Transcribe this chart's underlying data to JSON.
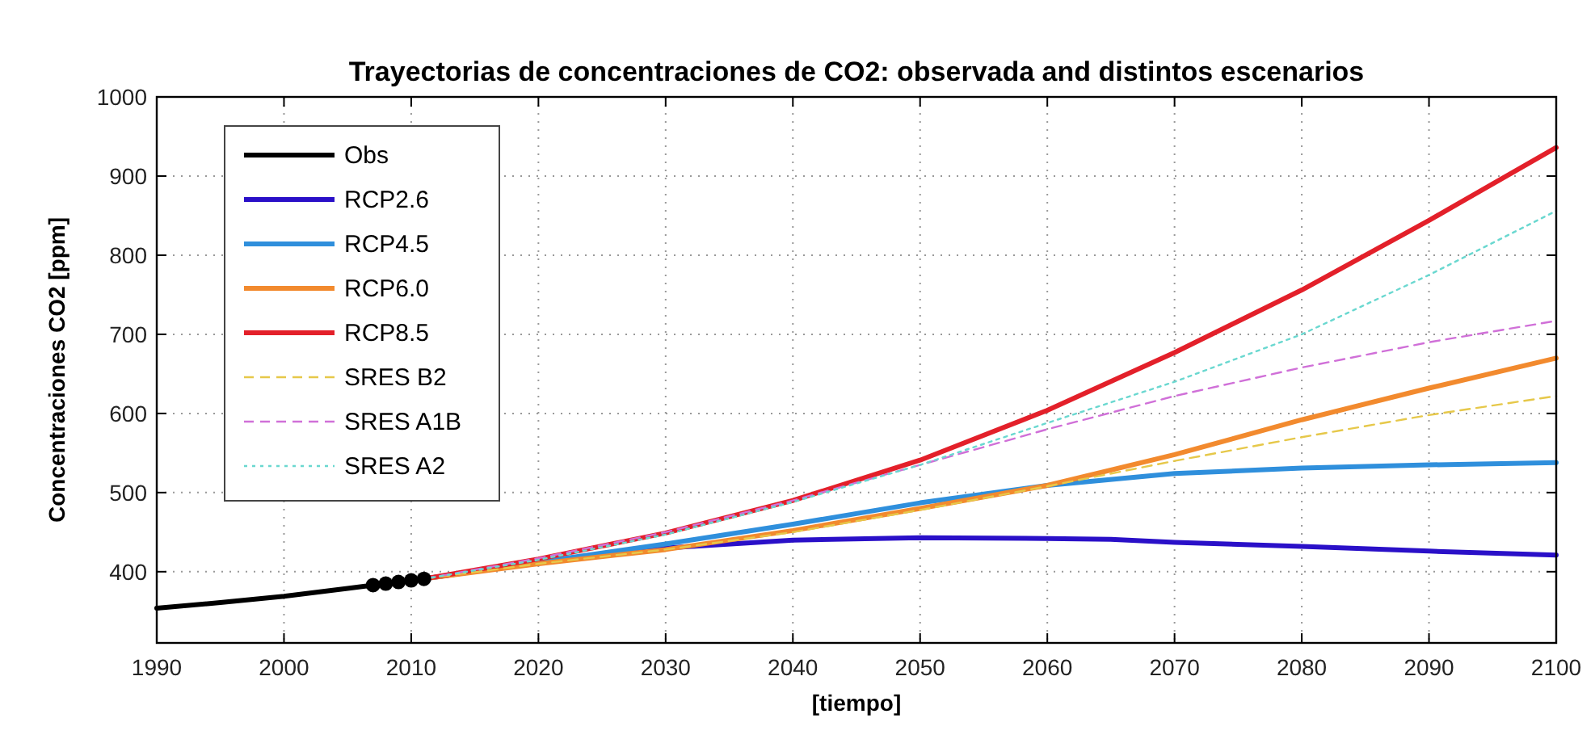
{
  "chart_data": {
    "type": "line",
    "title": "Trayectorias de concentraciones de CO2: observada and distintos escenarios",
    "xlabel": "[tiempo]",
    "ylabel": "Concentraciones CO2 [ppm]",
    "xlim": [
      1990,
      2100
    ],
    "xticks": [
      1990,
      2000,
      2010,
      2020,
      2030,
      2040,
      2050,
      2060,
      2070,
      2080,
      2090,
      2100
    ],
    "ylim": [
      310,
      1000
    ],
    "yticks": [
      400,
      500,
      600,
      700,
      800,
      900,
      1000
    ],
    "grid": true,
    "legend": "top left",
    "series": [
      {
        "name": "Obs",
        "color": "#000000",
        "line_style": "solid",
        "x": [
          1990,
          1995,
          2000,
          2005,
          2010,
          2011
        ],
        "values": [
          354,
          361,
          369,
          379,
          389,
          391
        ]
      },
      {
        "name": "RCP2.6",
        "color": "#2a10c8",
        "line_style": "solid",
        "x": [
          2011,
          2020,
          2030,
          2040,
          2050,
          2060,
          2065,
          2070,
          2080,
          2090,
          2100
        ],
        "values": [
          391,
          412,
          430,
          440,
          443,
          442,
          441,
          437,
          432,
          426,
          421
        ]
      },
      {
        "name": "RCP4.5",
        "color": "#2f8fdc",
        "line_style": "solid",
        "x": [
          2011,
          2020,
          2030,
          2040,
          2050,
          2060,
          2070,
          2080,
          2090,
          2100
        ],
        "values": [
          391,
          412,
          435,
          460,
          487,
          509,
          524,
          531,
          535,
          538
        ]
      },
      {
        "name": "RCP6.0",
        "color": "#f28a2e",
        "line_style": "solid",
        "x": [
          2011,
          2020,
          2030,
          2040,
          2050,
          2060,
          2070,
          2080,
          2090,
          2100
        ],
        "values": [
          391,
          410,
          428,
          452,
          480,
          509,
          548,
          592,
          632,
          670
        ]
      },
      {
        "name": "RCP8.5",
        "color": "#e3202a",
        "line_style": "solid",
        "x": [
          2011,
          2020,
          2030,
          2040,
          2050,
          2060,
          2070,
          2080,
          2090,
          2100
        ],
        "values": [
          391,
          416,
          449,
          490,
          541,
          604,
          677,
          756,
          844,
          936
        ]
      },
      {
        "name": "SRES B2",
        "color": "#e6c84a",
        "line_style": "dashed",
        "x": [
          2011,
          2020,
          2030,
          2040,
          2050,
          2060,
          2070,
          2080,
          2090,
          2100
        ],
        "values": [
          391,
          410,
          428,
          450,
          478,
          508,
          540,
          570,
          598,
          622
        ]
      },
      {
        "name": "SRES A1B",
        "color": "#d070d8",
        "line_style": "dashed",
        "x": [
          2011,
          2020,
          2030,
          2040,
          2050,
          2060,
          2070,
          2080,
          2090,
          2100
        ],
        "values": [
          391,
          417,
          450,
          490,
          535,
          580,
          622,
          658,
          690,
          717
        ]
      },
      {
        "name": "SRES A2",
        "color": "#6ad8d0",
        "line_style": "dotted",
        "x": [
          2011,
          2020,
          2030,
          2040,
          2050,
          2060,
          2070,
          2080,
          2090,
          2100
        ],
        "values": [
          391,
          415,
          447,
          488,
          535,
          588,
          640,
          700,
          775,
          856
        ]
      },
      {
        "type": "scatter",
        "color": "#000000",
        "marker": "circle",
        "x": [
          2007,
          2008,
          2009,
          2010,
          2011
        ],
        "values": [
          383,
          385,
          387,
          389,
          391
        ]
      }
    ]
  }
}
